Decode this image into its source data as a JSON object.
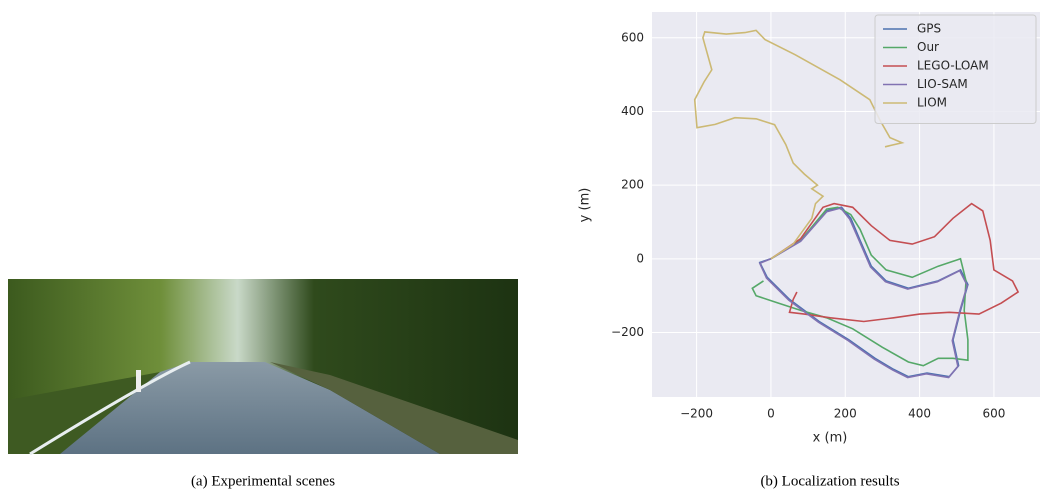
{
  "captions": [
    "(a)  Experimental scenes",
    "(b)  Localization results"
  ],
  "chart_data": {
    "type": "line",
    "xlabel": "x (m)",
    "ylabel": "y (m)",
    "xlim": [
      -320,
      724
    ],
    "ylim": [
      -375,
      670
    ],
    "xticks": [
      {
        "value": -200,
        "label": "−200"
      },
      0,
      200,
      400,
      600
    ],
    "yticks": [
      {
        "value": -200,
        "label": "−200"
      },
      0,
      200,
      400,
      600
    ],
    "grid": true,
    "legend": "upper right",
    "series": [
      {
        "name": "GPS",
        "color": "#4c72b0",
        "x": [
          0,
          80,
          150,
          190,
          215,
          240,
          270,
          310,
          370,
          450,
          510,
          530,
          510,
          490,
          505,
          480,
          420,
          370,
          330,
          280,
          210,
          130,
          50,
          -10,
          -30,
          0
        ],
        "values": [
          0,
          50,
          130,
          140,
          110,
          50,
          -20,
          -60,
          -80,
          -60,
          -30,
          -70,
          -140,
          -220,
          -290,
          -320,
          -310,
          -320,
          -300,
          -270,
          -220,
          -170,
          -110,
          -50,
          -10,
          0
        ]
      },
      {
        "name": "Our",
        "color": "#55a868",
        "x": [
          0,
          80,
          150,
          180,
          215,
          240,
          270,
          310,
          380,
          450,
          510,
          525,
          520,
          530,
          530,
          490,
          450,
          410,
          370,
          300,
          220,
          150,
          80,
          20,
          -40,
          -50,
          -20
        ],
        "values": [
          0,
          50,
          135,
          140,
          120,
          80,
          10,
          -30,
          -50,
          -20,
          0,
          -60,
          -140,
          -220,
          -275,
          -270,
          -270,
          -290,
          -280,
          -240,
          -190,
          -160,
          -140,
          -120,
          -100,
          -80,
          -60
        ]
      },
      {
        "name": "LEGO-LOAM",
        "color": "#c44e52",
        "x": [
          0,
          80,
          140,
          170,
          220,
          270,
          320,
          380,
          440,
          490,
          540,
          570,
          590,
          600,
          650,
          665,
          620,
          560,
          480,
          400,
          330,
          250,
          160,
          90,
          50,
          60,
          70
        ],
        "values": [
          0,
          55,
          140,
          150,
          140,
          90,
          50,
          40,
          60,
          110,
          150,
          130,
          50,
          -30,
          -60,
          -90,
          -120,
          -150,
          -145,
          -150,
          -160,
          -170,
          -160,
          -150,
          -145,
          -110,
          -90
        ]
      },
      {
        "name": "LIO-SAM",
        "color": "#8172b2",
        "x": [
          0,
          80,
          150,
          188,
          212,
          238,
          268,
          308,
          368,
          448,
          508,
          528,
          508,
          488,
          503,
          478,
          418,
          368,
          328,
          278,
          208,
          128,
          48,
          -12,
          -30,
          0
        ],
        "values": [
          0,
          48,
          128,
          138,
          108,
          48,
          -22,
          -62,
          -82,
          -62,
          -32,
          -72,
          -142,
          -222,
          -292,
          -322,
          -312,
          -322,
          -302,
          -272,
          -222,
          -172,
          -112,
          -52,
          -12,
          0
        ]
      },
      {
        "name": "LIOM",
        "color": "#ccb974",
        "x": [
          0,
          60,
          110,
          120,
          140,
          110,
          125,
          90,
          60,
          40,
          10,
          -40,
          -97,
          -150,
          -199,
          -205,
          -180,
          -159,
          -183,
          -178,
          -120,
          -70,
          -40,
          -16,
          65,
          186,
          266,
          293,
          320,
          353,
          307
        ],
        "values": [
          0,
          40,
          110,
          150,
          170,
          190,
          200,
          230,
          260,
          310,
          364,
          380,
          383,
          365,
          356,
          432,
          480,
          513,
          600,
          616,
          610,
          614,
          620,
          595,
          554,
          486,
          432,
          377,
          329,
          315,
          304
        ]
      }
    ]
  }
}
